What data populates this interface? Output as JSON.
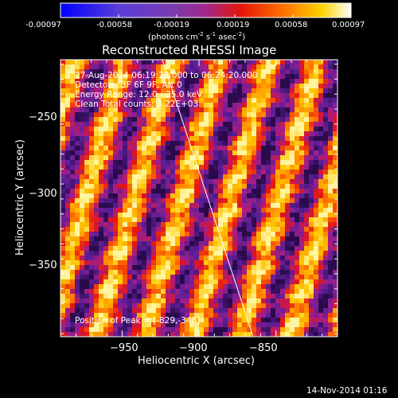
{
  "colorbar": {
    "ticks": [
      "-0.00097",
      "-0.00058",
      "-0.00019",
      "0.00019",
      "0.00058",
      "0.00097"
    ],
    "units_prefix": "(photons cm",
    "units_exp1": "-2",
    "units_mid": " s",
    "units_exp2": "-1",
    "units_mid2": " asec",
    "units_exp3": "-2",
    "units_suffix": ")"
  },
  "title": "Reconstructed RHESSI Image",
  "info": {
    "line1": "27-Aug-2014 06:19:28.000 to 06:24:20.000",
    "line2": "Detectors: 3F 6F 9F, Att 0",
    "line3": "Energy Range: 12.0 - 25.0 keV",
    "line4": "Clean     Total counts: 3.22E+03"
  },
  "peak": "Position of Peak = [-829,-348]",
  "axes": {
    "xlabel": "Heliocentric X (arcsec)",
    "ylabel": "Heliocentric Y (arcsec)",
    "xticks": [
      {
        "label": "−950",
        "value": -950
      },
      {
        "label": "−900",
        "value": -900
      },
      {
        "label": "−850",
        "value": -850
      }
    ],
    "yticks": [
      {
        "label": "−250",
        "value": -250
      },
      {
        "label": "−300",
        "value": -300
      },
      {
        "label": "−350",
        "value": -350
      }
    ],
    "xlim": [
      -990,
      -810
    ],
    "ylim": [
      -397,
      -212
    ]
  },
  "footer": "14-Nov-2014 01:16"
}
